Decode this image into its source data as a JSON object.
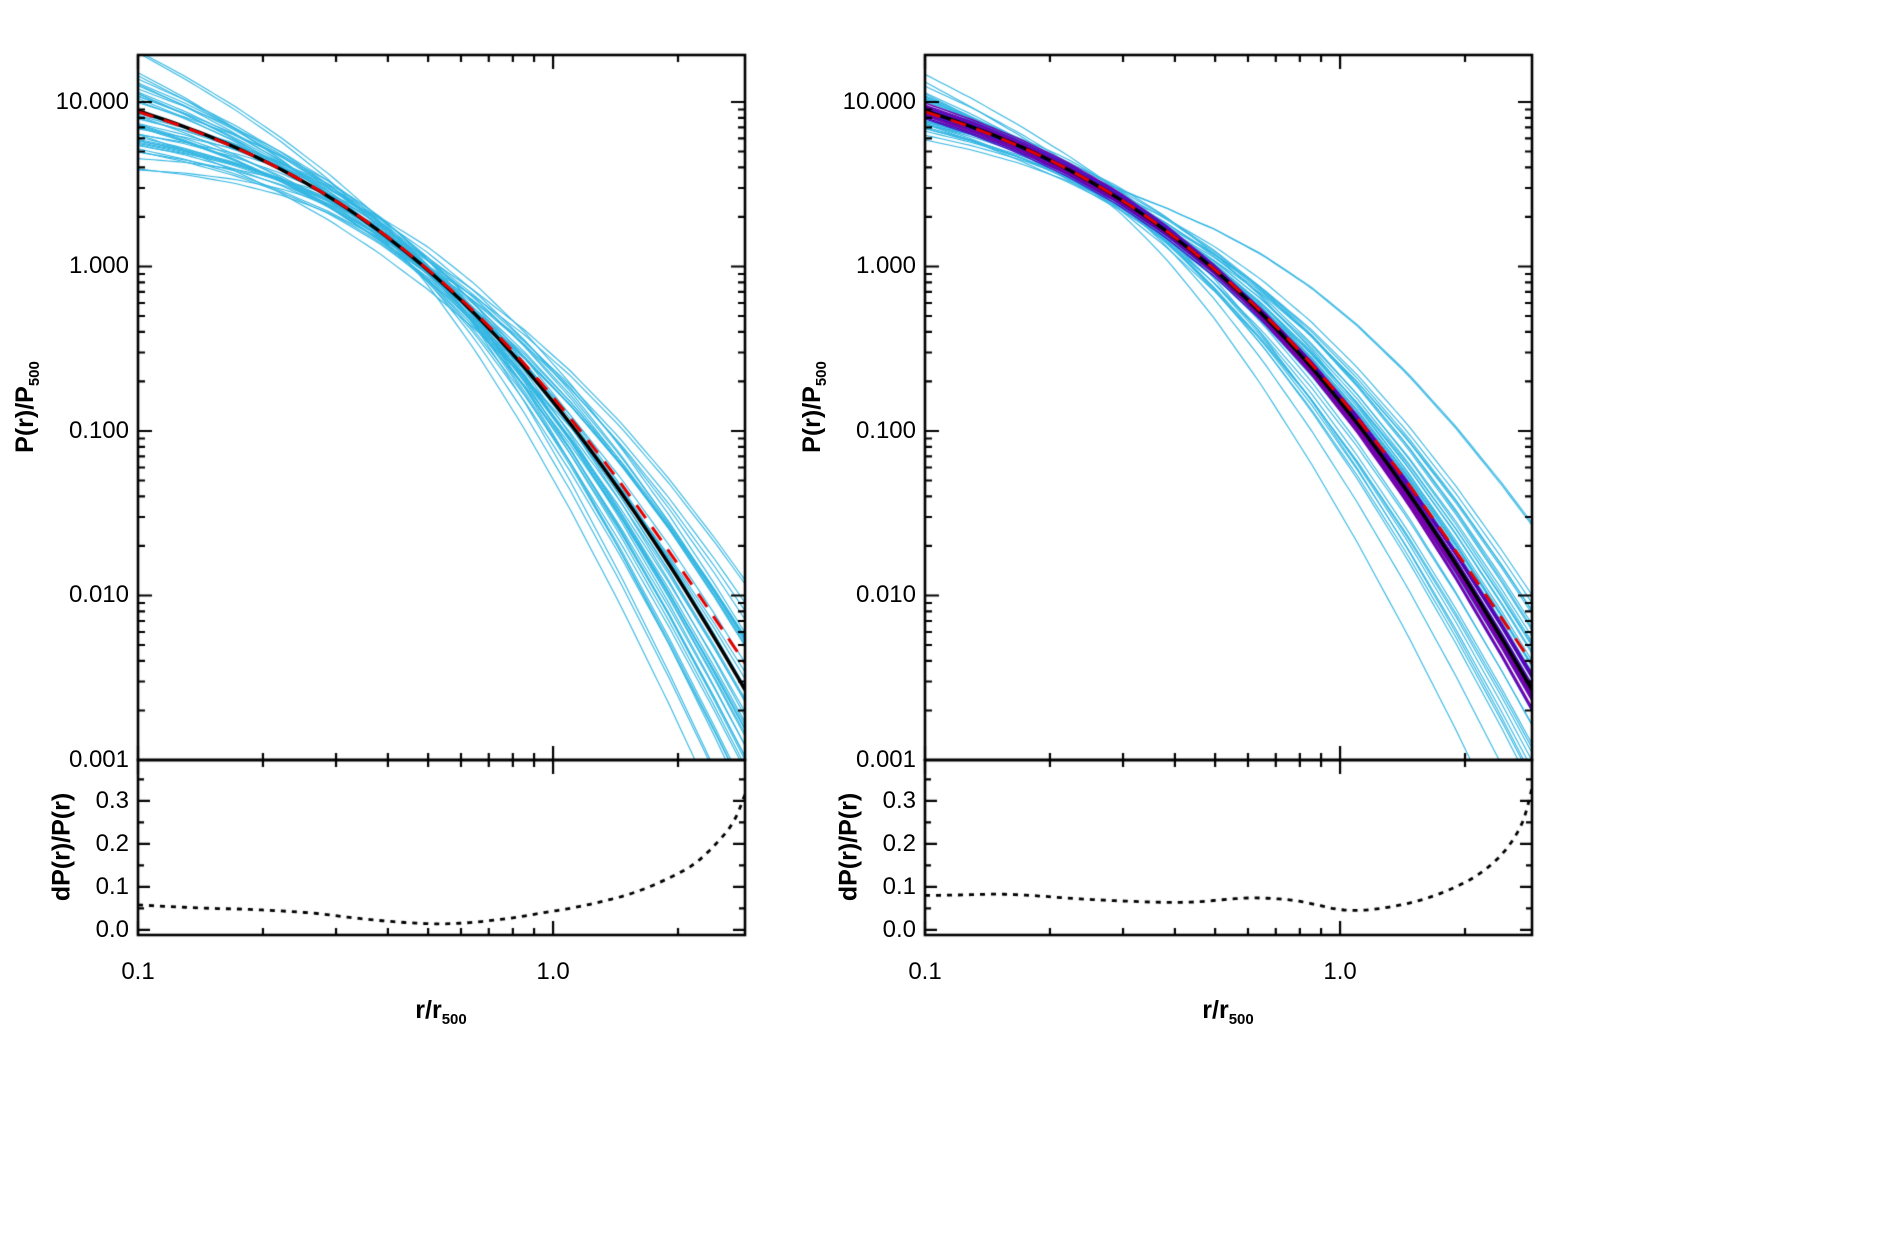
{
  "figure": {
    "background": "#ffffff"
  },
  "labels": {
    "pressure_base": "P(r)/P",
    "pressure_sub": "500",
    "frac_label": "dP(r)/P(r)",
    "radius_base": "r/r",
    "radius_sub": "500"
  },
  "chart_data": {
    "type": "line",
    "x_axis": {
      "scale": "log",
      "min": 0.1,
      "max": 2.9,
      "label": "r/r_500",
      "major_ticks": [
        0.1,
        1.0
      ],
      "major_tick_labels": [
        "0.1",
        "1.0"
      ],
      "minor_ticks": [
        0.2,
        0.3,
        0.4,
        0.5,
        0.6,
        0.7,
        0.8,
        0.9,
        2.0
      ]
    },
    "y_axis_main": {
      "scale": "log",
      "min": 0.001,
      "max": 19.3,
      "label": "P(r)/P_500",
      "major_ticks": [
        10,
        1,
        0.1,
        0.01,
        0.001
      ],
      "major_tick_labels": [
        "10.000",
        "1.000",
        "0.100",
        "0.010",
        "0.001"
      ]
    },
    "y_axis_sub": {
      "scale": "linear",
      "min": -0.012,
      "max": 0.395,
      "label": "dP(r)/P(r)",
      "major_ticks": [
        0.0,
        0.1,
        0.2,
        0.3
      ],
      "major_tick_labels": [
        "0.0",
        "0.1",
        "0.2",
        "0.3"
      ],
      "minor_ticks": [
        0.05,
        0.15,
        0.25,
        0.35
      ]
    },
    "panels": [
      {
        "name": "left",
        "median": {
          "color": "#000000",
          "line_width": 3.5,
          "points": [
            [
              0.1,
              8.84
            ],
            [
              0.13,
              7.04
            ],
            [
              0.17,
              5.35
            ],
            [
              0.22,
              3.91
            ],
            [
              0.29,
              2.63
            ],
            [
              0.38,
              1.65
            ],
            [
              0.5,
              0.947
            ],
            [
              0.65,
              0.51
            ],
            [
              0.85,
              0.246
            ],
            [
              1.1,
              0.1111
            ],
            [
              1.45,
              0.0431
            ],
            [
              1.9,
              0.01554
            ],
            [
              2.45,
              0.00551
            ],
            [
              2.9,
              0.00267
            ]
          ]
        },
        "fit": {
          "color": "#e60000",
          "line_width": 3.0,
          "dash": [
            16,
            11
          ],
          "points": [
            [
              0.1,
              8.72
            ],
            [
              0.13,
              6.99
            ],
            [
              0.17,
              5.33
            ],
            [
              0.22,
              3.92
            ],
            [
              0.29,
              2.64
            ],
            [
              0.38,
              1.66
            ],
            [
              0.5,
              0.955
            ],
            [
              0.65,
              0.522
            ],
            [
              0.85,
              0.258
            ],
            [
              1.1,
              0.1198
            ],
            [
              1.45,
              0.0487
            ],
            [
              1.9,
              0.01862
            ],
            [
              2.45,
              0.00729
            ],
            [
              2.9,
              0.00388
            ]
          ]
        },
        "ensembles": [
          {
            "kind": "cluster-profiles",
            "count": 46,
            "seed": 1337,
            "colors": [
              "#35b7e3"
            ],
            "line_width": 1.1,
            "pivot": 0.45,
            "sigma_inner": 0.8,
            "sigma_outer": 1.15,
            "sigma_norm": 0.12
          }
        ],
        "fractional_dispersion": {
          "color": "#000000",
          "line_width": 2.8,
          "dash": [
            5,
            6
          ],
          "points": [
            [
              0.1,
              0.058
            ],
            [
              0.12,
              0.054
            ],
            [
              0.15,
              0.05
            ],
            [
              0.18,
              0.048
            ],
            [
              0.22,
              0.044
            ],
            [
              0.27,
              0.038
            ],
            [
              0.33,
              0.028
            ],
            [
              0.4,
              0.02
            ],
            [
              0.48,
              0.015
            ],
            [
              0.55,
              0.014
            ],
            [
              0.65,
              0.018
            ],
            [
              0.8,
              0.028
            ],
            [
              0.95,
              0.04
            ],
            [
              1.1,
              0.05
            ],
            [
              1.3,
              0.065
            ],
            [
              1.55,
              0.085
            ],
            [
              1.85,
              0.115
            ],
            [
              2.2,
              0.155
            ],
            [
              2.55,
              0.215
            ],
            [
              2.75,
              0.26
            ],
            [
              2.9,
              0.315
            ]
          ]
        }
      },
      {
        "name": "right",
        "median": {
          "color": "#000000",
          "line_width": 3.5,
          "points": [
            [
              0.1,
              8.84
            ],
            [
              0.13,
              7.04
            ],
            [
              0.17,
              5.35
            ],
            [
              0.22,
              3.91
            ],
            [
              0.29,
              2.63
            ],
            [
              0.38,
              1.65
            ],
            [
              0.5,
              0.947
            ],
            [
              0.65,
              0.51
            ],
            [
              0.85,
              0.246
            ],
            [
              1.1,
              0.1111
            ],
            [
              1.45,
              0.0431
            ],
            [
              1.9,
              0.01554
            ],
            [
              2.45,
              0.00551
            ],
            [
              2.9,
              0.00267
            ]
          ]
        },
        "fit": {
          "color": "#e60000",
          "line_width": 3.0,
          "dash": [
            16,
            11
          ],
          "points": [
            [
              0.1,
              8.72
            ],
            [
              0.13,
              6.99
            ],
            [
              0.17,
              5.33
            ],
            [
              0.22,
              3.92
            ],
            [
              0.29,
              2.64
            ],
            [
              0.38,
              1.66
            ],
            [
              0.5,
              0.955
            ],
            [
              0.65,
              0.522
            ],
            [
              0.85,
              0.258
            ],
            [
              1.1,
              0.1198
            ],
            [
              1.45,
              0.0487
            ],
            [
              1.9,
              0.01862
            ],
            [
              2.45,
              0.00729
            ],
            [
              2.9,
              0.00388
            ]
          ]
        },
        "ensembles": [
          {
            "kind": "cluster-profiles",
            "count": 42,
            "seed": 90210,
            "colors": [
              "#35b7e3"
            ],
            "line_width": 1.1,
            "pivot": 0.27,
            "sigma_inner": 0.5,
            "sigma_outer": 1.05,
            "sigma_norm": 0.08
          },
          {
            "kind": "model-bundle",
            "count": 36,
            "seed": 777,
            "colors": [
              "#5a00b4",
              "#4617c9",
              "#7a00aa"
            ],
            "line_width": 1.4,
            "pivot": 0.45,
            "sigma_inner": 0.05,
            "sigma_outer": 0.24,
            "sigma_norm": 0.035
          }
        ],
        "fractional_dispersion": {
          "color": "#000000",
          "line_width": 2.8,
          "dash": [
            5,
            6
          ],
          "points": [
            [
              0.1,
              0.08
            ],
            [
              0.12,
              0.081
            ],
            [
              0.15,
              0.083
            ],
            [
              0.18,
              0.08
            ],
            [
              0.22,
              0.074
            ],
            [
              0.27,
              0.069
            ],
            [
              0.32,
              0.066
            ],
            [
              0.38,
              0.064
            ],
            [
              0.45,
              0.065
            ],
            [
              0.52,
              0.07
            ],
            [
              0.6,
              0.074
            ],
            [
              0.68,
              0.073
            ],
            [
              0.78,
              0.068
            ],
            [
              0.88,
              0.058
            ],
            [
              1.0,
              0.047
            ],
            [
              1.15,
              0.046
            ],
            [
              1.35,
              0.055
            ],
            [
              1.6,
              0.072
            ],
            [
              1.9,
              0.1
            ],
            [
              2.2,
              0.135
            ],
            [
              2.5,
              0.185
            ],
            [
              2.75,
              0.25
            ],
            [
              2.9,
              0.33
            ]
          ]
        }
      }
    ]
  }
}
